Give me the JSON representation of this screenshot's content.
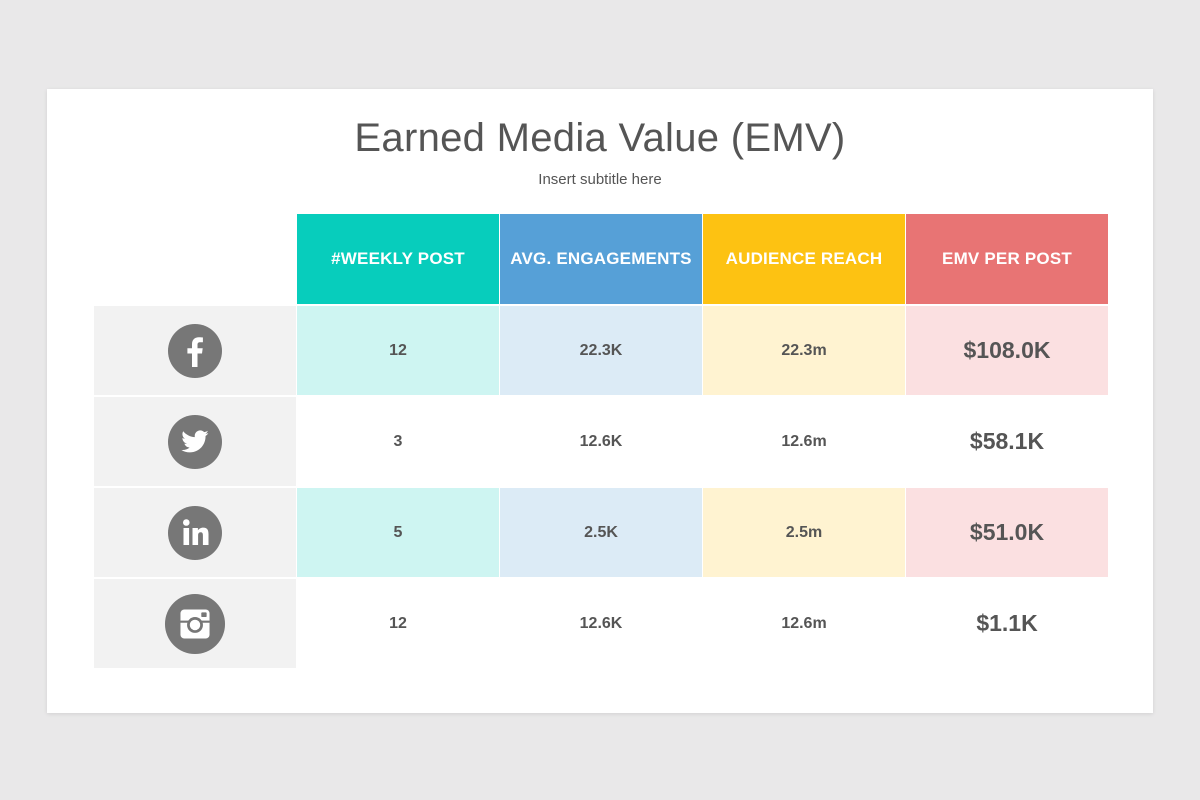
{
  "slide": {
    "title": "Earned Media Value (EMV)",
    "subtitle": "Insert subtitle here"
  },
  "columns": [
    {
      "label": "#WEEKLY POST",
      "header_color": "#07cdbc",
      "tint_color": "#cef5f2"
    },
    {
      "label": "AVG. ENGAGEMENTS",
      "header_color": "#56a0d7",
      "tint_color": "#dcebf6"
    },
    {
      "label": "AUDIENCE REACH",
      "header_color": "#fdc212",
      "tint_color": "#fff3d1"
    },
    {
      "label": "EMV PER POST",
      "header_color": "#e87474",
      "tint_color": "#fbe0e1"
    }
  ],
  "rows": [
    {
      "icon": "facebook-icon",
      "weekly_post": "12",
      "avg_engagements": "22.3K",
      "audience_reach": "22.3m",
      "emv_per_post": "$108.0K",
      "tinted": true
    },
    {
      "icon": "twitter-icon",
      "weekly_post": "3",
      "avg_engagements": "12.6K",
      "audience_reach": "12.6m",
      "emv_per_post": "$58.1K",
      "tinted": false
    },
    {
      "icon": "linkedin-icon",
      "weekly_post": "5",
      "avg_engagements": "2.5K",
      "audience_reach": "2.5m",
      "emv_per_post": "$51.0K",
      "tinted": true
    },
    {
      "icon": "instagram-icon",
      "weekly_post": "12",
      "avg_engagements": "12.6K",
      "audience_reach": "12.6m",
      "emv_per_post": "$1.1K",
      "tinted": false
    }
  ],
  "colors": {
    "icon_circle": "#777777",
    "icon_cell_bg": "#f2f2f2",
    "text": "#555555"
  }
}
